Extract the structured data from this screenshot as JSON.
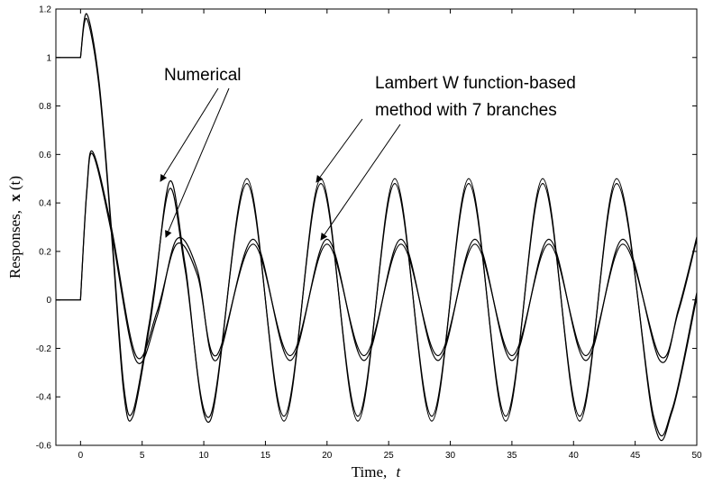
{
  "chart_data": {
    "type": "line",
    "xlabel": "Time,",
    "xlabel_var": "t",
    "ylabel": "Responses,",
    "ylabel_var_bold": "x",
    "ylabel_var_arg": "(t)",
    "xlim": [
      -2,
      50
    ],
    "ylim": [
      -0.6,
      1.2
    ],
    "x_ticks": [
      0,
      5,
      10,
      15,
      20,
      25,
      30,
      35,
      40,
      45,
      50
    ],
    "y_ticks": [
      -0.6,
      -0.4,
      -0.2,
      0,
      0.2,
      0.4,
      0.6,
      0.8,
      1,
      1.2
    ],
    "x_tick_labels": [
      "0",
      "5",
      "10",
      "15",
      "20",
      "25",
      "30",
      "35",
      "40",
      "45",
      "50"
    ],
    "y_tick_labels": [
      "-0.6",
      "-0.4",
      "-0.2",
      "0",
      "0.2",
      "0.4",
      "0.6",
      "0.8",
      "1",
      "1.2"
    ],
    "grid": false,
    "series": [
      {
        "color": "#000000",
        "x": [
          -2,
          0,
          0,
          0.5,
          1.5,
          2.5,
          3.5,
          4.25,
          5.5,
          6.0,
          7.25,
          8.5,
          10.5,
          13.5,
          16.5,
          19.5,
          22.5,
          25.5,
          28.5,
          31.5,
          34.5,
          37.5,
          40.5,
          43.5,
          46.5,
          48.0,
          50
        ],
        "y": [
          1,
          1,
          1,
          1.18,
          0.9,
          0.3,
          -0.35,
          -0.46,
          -0.12,
          0.05,
          0.46,
          0.12,
          -0.48,
          0.48,
          -0.48,
          0.48,
          -0.48,
          0.48,
          -0.48,
          0.48,
          -0.48,
          0.48,
          -0.48,
          0.48,
          -0.48,
          -0.45,
          0.03
        ]
      },
      {
        "color": "#000000",
        "x": [
          -2,
          0,
          0,
          0.5,
          1.5,
          2.5,
          3.5,
          4.25,
          5.5,
          6.0,
          7.25,
          8.5,
          10.5,
          13.5,
          16.5,
          19.5,
          22.5,
          25.5,
          28.5,
          31.5,
          34.5,
          37.5,
          40.5,
          43.5,
          46.5,
          48.0,
          50
        ],
        "y": [
          1,
          1,
          1,
          1.16,
          0.88,
          0.28,
          -0.38,
          -0.48,
          -0.14,
          0.03,
          0.49,
          0.14,
          -0.5,
          0.5,
          -0.5,
          0.5,
          -0.5,
          0.5,
          -0.5,
          0.5,
          -0.5,
          0.5,
          -0.5,
          0.5,
          -0.5,
          -0.46,
          0.01
        ]
      },
      {
        "color": "#000000",
        "x": [
          -2,
          0,
          0,
          0.5,
          1,
          2.5,
          4.5,
          6.2,
          7.8,
          9.5,
          11,
          14,
          17,
          20,
          23,
          26,
          29,
          32,
          35,
          38,
          41,
          44,
          47,
          48.5,
          50
        ],
        "y": [
          0,
          0,
          0,
          0.45,
          0.61,
          0.3,
          -0.23,
          -0.05,
          0.23,
          0.1,
          -0.23,
          0.23,
          -0.23,
          0.23,
          -0.23,
          0.23,
          -0.23,
          0.23,
          -0.23,
          0.23,
          -0.23,
          0.23,
          -0.23,
          -0.05,
          0.25
        ]
      },
      {
        "color": "#000000",
        "x": [
          -2,
          0,
          0,
          0.5,
          1,
          2.5,
          4.5,
          6.2,
          7.8,
          9.5,
          11,
          14,
          17,
          20,
          23,
          26,
          29,
          32,
          35,
          38,
          41,
          44,
          47,
          48.5,
          50
        ],
        "y": [
          0,
          0,
          0,
          0.44,
          0.6,
          0.28,
          -0.25,
          -0.07,
          0.25,
          0.12,
          -0.25,
          0.25,
          -0.25,
          0.25,
          -0.25,
          0.25,
          -0.25,
          0.25,
          -0.25,
          0.25,
          -0.25,
          0.25,
          -0.25,
          -0.04,
          0.26
        ]
      }
    ],
    "annotations": [
      {
        "text": "Numerical",
        "arrows": [
          [
            7.2,
            0.49
          ],
          [
            7.8,
            0.25
          ]
        ]
      },
      {
        "text": "Lambert W function-based",
        "arrows": [
          [
            19.8,
            0.49
          ],
          [
            20.3,
            0.25
          ]
        ]
      },
      {
        "text": "method with 7 branches",
        "arrows": []
      }
    ]
  }
}
